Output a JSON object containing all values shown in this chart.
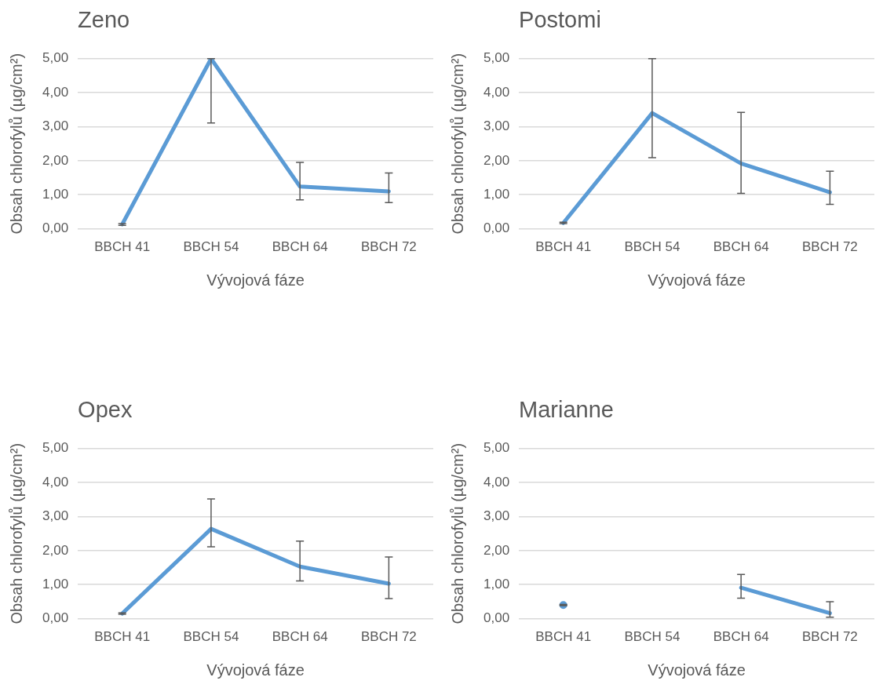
{
  "chart_data": [
    {
      "type": "line",
      "title": "Zeno",
      "xlabel": "Vývojová fáze",
      "ylabel": "Obsah chlorofylů (µg/cm²)",
      "categories": [
        "BBCH 41",
        "BBCH 54",
        "BBCH 64",
        "BBCH 72"
      ],
      "series": [
        {
          "color": "#5b9bd5",
          "values": [
            0.13,
            5.0,
            1.24,
            1.1
          ],
          "errors": [
            [
              0.1,
              0.15
            ],
            [
              3.11,
              5.0
            ],
            [
              0.85,
              1.95
            ],
            [
              0.77,
              1.64
            ]
          ]
        }
      ],
      "ylim": [
        0,
        5
      ],
      "yticks": [
        {
          "value": 0,
          "label": "0,00"
        },
        {
          "value": 1,
          "label": "1,00"
        },
        {
          "value": 2,
          "label": "2,00"
        },
        {
          "value": 3,
          "label": "3,00"
        },
        {
          "value": 4,
          "label": "4,00"
        },
        {
          "value": 5,
          "label": "5,00"
        }
      ],
      "grid": "y",
      "legend": false,
      "marker": "none",
      "line_style": "solid"
    },
    {
      "type": "line",
      "title": "Postomi",
      "xlabel": "Vývojová fáze",
      "ylabel": "Obsah chlorofylů (µg/cm²)",
      "categories": [
        "BBCH 41",
        "BBCH 54",
        "BBCH 64",
        "BBCH 72"
      ],
      "series": [
        {
          "color": "#5b9bd5",
          "values": [
            0.17,
            3.4,
            1.92,
            1.07
          ],
          "errors": [
            [
              0.15,
              0.19
            ],
            [
              2.09,
              5.0
            ],
            [
              1.04,
              3.42
            ],
            [
              0.72,
              1.69
            ]
          ]
        }
      ],
      "ylim": [
        0,
        5
      ],
      "yticks": [
        {
          "value": 0,
          "label": "0,00"
        },
        {
          "value": 1,
          "label": "1,00"
        },
        {
          "value": 2,
          "label": "2,00"
        },
        {
          "value": 3,
          "label": "3,00"
        },
        {
          "value": 4,
          "label": "4,00"
        },
        {
          "value": 5,
          "label": "5,00"
        }
      ],
      "grid": "y",
      "legend": false,
      "marker": "none",
      "line_style": "solid"
    },
    {
      "type": "line",
      "title": "Opex",
      "xlabel": "Vývojová fáze",
      "ylabel": "Obsah chlorofylů (µg/cm²)",
      "categories": [
        "BBCH 41",
        "BBCH 54",
        "BBCH 64",
        "BBCH 72"
      ],
      "series": [
        {
          "color": "#5b9bd5",
          "values": [
            0.15,
            2.64,
            1.53,
            1.03
          ],
          "errors": [
            [
              0.13,
              0.17
            ],
            [
              2.11,
              3.52
            ],
            [
              1.11,
              2.28
            ],
            [
              0.59,
              1.81
            ]
          ]
        }
      ],
      "ylim": [
        0,
        5
      ],
      "yticks": [
        {
          "value": 0,
          "label": "0,00"
        },
        {
          "value": 1,
          "label": "1,00"
        },
        {
          "value": 2,
          "label": "2,00"
        },
        {
          "value": 3,
          "label": "3,00"
        },
        {
          "value": 4,
          "label": "4,00"
        },
        {
          "value": 5,
          "label": "5,00"
        }
      ],
      "grid": "y",
      "legend": false,
      "marker": "none",
      "line_style": "solid"
    },
    {
      "type": "line",
      "title": "Marianne",
      "xlabel": "Vývojová fáze",
      "ylabel": "Obsah chlorofylů (µg/cm²)",
      "categories": [
        "BBCH 41",
        "BBCH 54",
        "BBCH 64",
        "BBCH 72"
      ],
      "series": [
        {
          "color": "#5b9bd5",
          "values": [
            0.4,
            null,
            0.91,
            0.16
          ],
          "errors": [
            [
              0.38,
              0.42
            ],
            null,
            [
              0.6,
              1.3
            ],
            [
              0.04,
              0.5
            ]
          ]
        }
      ],
      "ylim": [
        0,
        5
      ],
      "yticks": [
        {
          "value": 0,
          "label": "0,00"
        },
        {
          "value": 1,
          "label": "1,00"
        },
        {
          "value": 2,
          "label": "2,00"
        },
        {
          "value": 3,
          "label": "3,00"
        },
        {
          "value": 4,
          "label": "4,00"
        },
        {
          "value": 5,
          "label": "5,00"
        }
      ],
      "grid": "y",
      "legend": false,
      "marker": "none",
      "line_style": "solid"
    }
  ]
}
